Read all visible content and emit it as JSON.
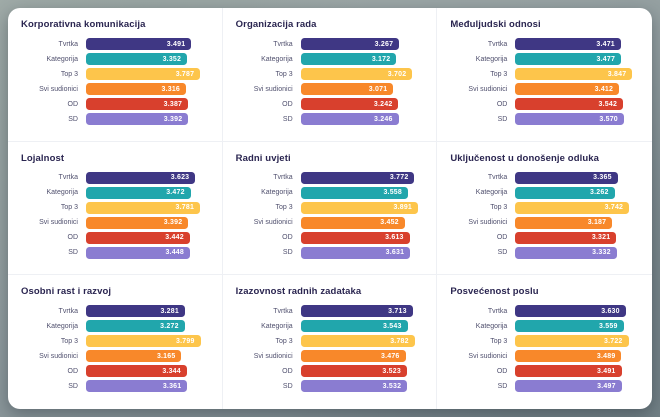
{
  "report": {
    "row_labels": [
      "Tvrtka",
      "Kategorija",
      "Top 3",
      "Svi sudionici",
      "OD",
      "SD"
    ],
    "bar_colors": [
      "#3f3784",
      "#21a6ac",
      "#fdc54b",
      "#f8882a",
      "#d8402d",
      "#8a7cd1"
    ],
    "value_text_color": "#ffffff",
    "title_color": "#2a2550",
    "axis_max": 4
  },
  "chart_data": [
    {
      "type": "bar",
      "orientation": "horizontal",
      "title": "Korporativna komunikacija",
      "categories": [
        "Tvrtka",
        "Kategorija",
        "Top 3",
        "Svi sudionici",
        "OD",
        "SD"
      ],
      "values": [
        3.491,
        3.352,
        3.787,
        3.316,
        3.387,
        3.392
      ],
      "xlim": [
        0,
        4
      ]
    },
    {
      "type": "bar",
      "orientation": "horizontal",
      "title": "Organizacija rada",
      "categories": [
        "Tvrtka",
        "Kategorija",
        "Top 3",
        "Svi sudionici",
        "OD",
        "SD"
      ],
      "values": [
        3.267,
        3.172,
        3.702,
        3.071,
        3.242,
        3.246
      ],
      "xlim": [
        0,
        4
      ]
    },
    {
      "type": "bar",
      "orientation": "horizontal",
      "title": "Međuljudski odnosi",
      "categories": [
        "Tvrtka",
        "Kategorija",
        "Top 3",
        "Svi sudionici",
        "OD",
        "SD"
      ],
      "values": [
        3.471,
        3.477,
        3.847,
        3.412,
        3.542,
        3.57
      ],
      "xlim": [
        0,
        4
      ]
    },
    {
      "type": "bar",
      "orientation": "horizontal",
      "title": "Lojalnost",
      "categories": [
        "Tvrtka",
        "Kategorija",
        "Top 3",
        "Svi sudionici",
        "OD",
        "SD"
      ],
      "values": [
        3.623,
        3.472,
        3.781,
        3.392,
        3.442,
        3.448
      ],
      "xlim": [
        0,
        4
      ]
    },
    {
      "type": "bar",
      "orientation": "horizontal",
      "title": "Radni uvjeti",
      "categories": [
        "Tvrtka",
        "Kategorija",
        "Top 3",
        "Svi sudionici",
        "OD",
        "SD"
      ],
      "values": [
        3.772,
        3.558,
        3.891,
        3.452,
        3.613,
        3.631
      ],
      "xlim": [
        0,
        4
      ]
    },
    {
      "type": "bar",
      "orientation": "horizontal",
      "title": "Uključenost u donošenje odluka",
      "categories": [
        "Tvrtka",
        "Kategorija",
        "Top 3",
        "Svi sudionici",
        "OD",
        "SD"
      ],
      "values": [
        3.365,
        3.262,
        3.742,
        3.187,
        3.321,
        3.332
      ],
      "xlim": [
        0,
        4
      ]
    },
    {
      "type": "bar",
      "orientation": "horizontal",
      "title": "Osobni rast i razvoj",
      "categories": [
        "Tvrtka",
        "Kategorija",
        "Top 3",
        "Svi sudionici",
        "OD",
        "SD"
      ],
      "values": [
        3.281,
        3.272,
        3.799,
        3.165,
        3.344,
        3.361
      ],
      "xlim": [
        0,
        4
      ]
    },
    {
      "type": "bar",
      "orientation": "horizontal",
      "title": "Izazovnost radnih zadataka",
      "categories": [
        "Tvrtka",
        "Kategorija",
        "Top 3",
        "Svi sudionici",
        "OD",
        "SD"
      ],
      "values": [
        3.713,
        3.543,
        3.782,
        3.476,
        3.523,
        3.532
      ],
      "xlim": [
        0,
        4
      ]
    },
    {
      "type": "bar",
      "orientation": "horizontal",
      "title": "Posvećenost poslu",
      "categories": [
        "Tvrtka",
        "Kategorija",
        "Top 3",
        "Svi sudionici",
        "OD",
        "SD"
      ],
      "values": [
        3.63,
        3.559,
        3.722,
        3.489,
        3.491,
        3.497
      ],
      "xlim": [
        0,
        4
      ]
    }
  ]
}
